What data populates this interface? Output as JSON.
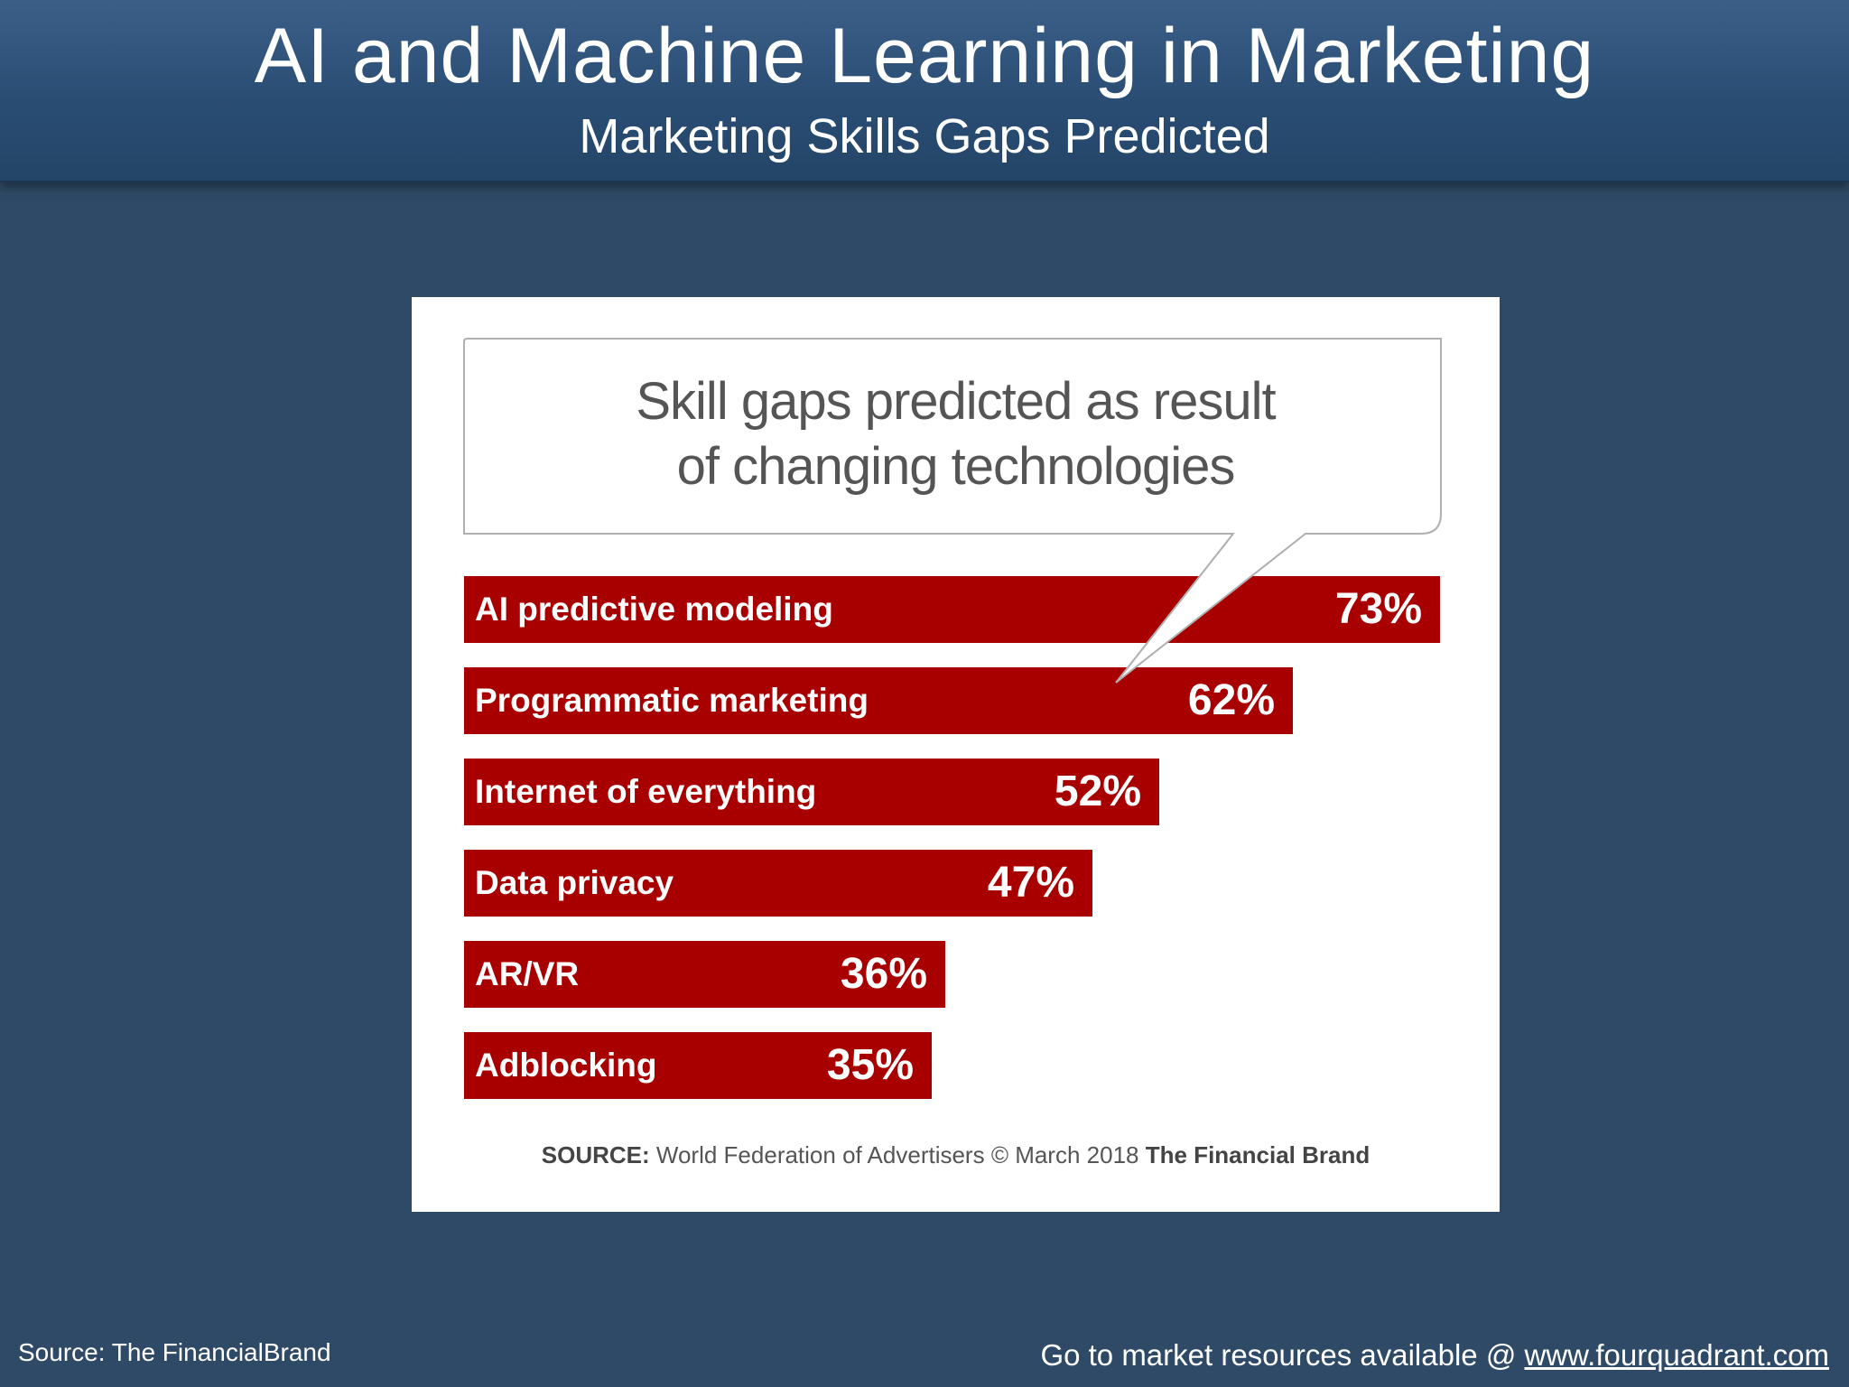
{
  "header": {
    "title": "AI and Machine Learning in Marketing",
    "subtitle": "Marketing Skills Gaps Predicted"
  },
  "chart_data": {
    "type": "bar",
    "orientation": "horizontal",
    "title_lines": [
      "Skill gaps predicted as result",
      "of changing technologies"
    ],
    "categories": [
      "AI predictive modeling",
      "Programmatic marketing",
      "Internet of everything",
      "Data privacy",
      "AR/VR",
      "Adblocking"
    ],
    "values": [
      73,
      62,
      52,
      47,
      36,
      35
    ],
    "value_labels": [
      "73%",
      "62%",
      "52%",
      "47%",
      "36%",
      "35%"
    ],
    "unit": "%",
    "bar_color": "#a80000",
    "source": {
      "label": "SOURCE:",
      "text": "World Federation of Advertisers © March 2018",
      "brand": "The Financial Brand"
    }
  },
  "footer": {
    "source": "Source: The FinancialBrand",
    "resources_text": "Go to market resources available @",
    "link_text": "www.fourquadrant.com"
  }
}
